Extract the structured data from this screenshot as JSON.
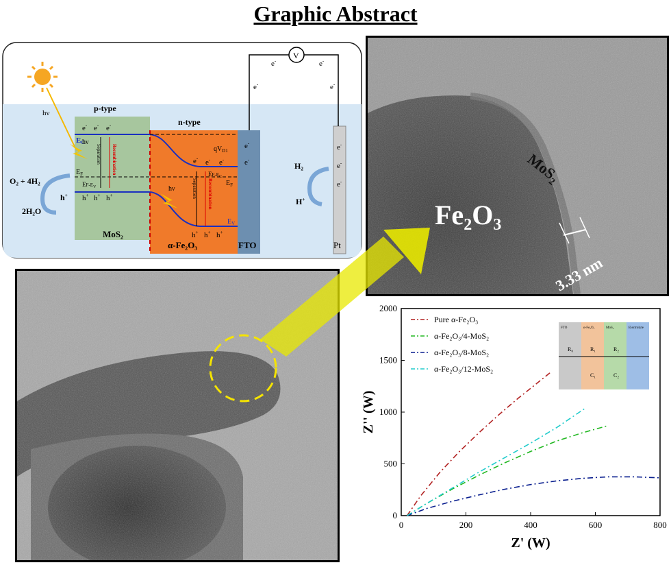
{
  "title": "Graphic Abstract",
  "schematic": {
    "sun_label": "hν",
    "sun_label2": "hν",
    "sun_label3": "hν",
    "ptype": "p-type",
    "ntype": "n-type",
    "mos2_label": "MoS₂",
    "fe2o3_label": "α-Fe₂O₃",
    "fto_label": "FTO",
    "pt_label": "Pt",
    "ec_label": "E",
    "ec_sub": "C",
    "ef_label": "E",
    "ef_sub": "F",
    "ef2_label": "E",
    "ef2_sub": "F",
    "ev_label": "E",
    "ev_sub": "V",
    "ef_ev": "E",
    "ef_ev_rest": "F-E",
    "ef_ev_sub": "V",
    "ef_ec": "E",
    "ef_ec_rest": "F-E",
    "ef_ec_sub": "C",
    "qvd": "qV",
    "qvd_sub": "D1",
    "separation": "Separation",
    "recombination": "Recombination",
    "o2_4h2": "O₂ + 4H₂",
    "two_h2o": "2H₂O",
    "h_plus": "h",
    "h2": "H₂",
    "hplus_right": "H",
    "voltmeter": "V",
    "electron": "e"
  },
  "tem_top": {
    "fe2o3": "Fe",
    "fe2o3_sub1": "2",
    "fe2o3_o": "O",
    "fe2o3_sub2": "3",
    "mos2": "MoS",
    "mos2_sub": "2",
    "scale": "3.33 nm"
  },
  "chart_data": {
    "type": "line",
    "xlabel": "Z' (W)",
    "ylabel": "Z'' (W)",
    "xlim": [
      0,
      800
    ],
    "ylim": [
      0,
      2000
    ],
    "xticks": [
      0,
      200,
      400,
      600,
      800
    ],
    "yticks": [
      0,
      500,
      1000,
      1500,
      2000
    ],
    "legend_position": "top-left",
    "series": [
      {
        "name": "Pure α-Fe₂O₃",
        "color": "#b22222",
        "dash": "8,4,2,4",
        "x": [
          18,
          60,
          120,
          180,
          240,
          300,
          360,
          420,
          460
        ],
        "y": [
          0,
          190,
          420,
          620,
          800,
          970,
          1130,
          1280,
          1380
        ]
      },
      {
        "name": "α-Fe₂O₃/4-MoS₂",
        "color": "#22b822",
        "dash": "8,4,2,4",
        "x": [
          18,
          80,
          160,
          240,
          320,
          400,
          480,
          560,
          640
        ],
        "y": [
          0,
          120,
          260,
          390,
          510,
          620,
          720,
          800,
          870
        ]
      },
      {
        "name": "α-Fe₂O₃/8-MoS₂",
        "color": "#0a1f8f",
        "dash": "8,4,2,4",
        "x": [
          18,
          80,
          160,
          240,
          320,
          400,
          480,
          560,
          640,
          720,
          800
        ],
        "y": [
          0,
          70,
          140,
          200,
          255,
          300,
          335,
          360,
          375,
          375,
          365
        ]
      },
      {
        "name": "α-Fe₂O₃/12-MoS₂",
        "color": "#22cccc",
        "dash": "8,4,2,4",
        "x": [
          18,
          80,
          160,
          240,
          320,
          400,
          480,
          570
        ],
        "y": [
          0,
          120,
          270,
          420,
          560,
          700,
          850,
          1040
        ]
      }
    ],
    "inset": {
      "layers": [
        "FTO",
        "α-Fe₂O₃",
        "MoS₂",
        "Electrolyte"
      ],
      "elements": [
        "R₀",
        "R₁",
        "R₂",
        "C₁",
        "C₂"
      ]
    }
  }
}
